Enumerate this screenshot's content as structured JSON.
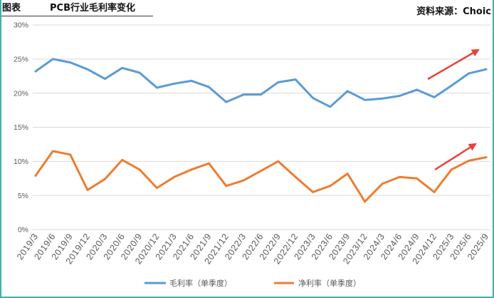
{
  "header": {
    "label": "图表",
    "source": "资料来源：Choic"
  },
  "colors": {
    "frame": "#3FB1AD",
    "grid": "#D9D9D9",
    "annotation_arrow": "#E8423B"
  },
  "chart_data": {
    "type": "line",
    "title": "PCB行业毛利率变化",
    "categories": [
      "2019/3",
      "2019/6",
      "2019/9",
      "2019/12",
      "2020/3",
      "2020/6",
      "2020/9",
      "2020/12",
      "2021/3",
      "2021/6",
      "2021/9",
      "2021/12",
      "2022/3",
      "2022/6",
      "2022/9",
      "2022/12",
      "2023/3",
      "2023/6",
      "2023/9",
      "2023/12",
      "2024/3",
      "2024/6",
      "2024/9",
      "2024/12",
      "2025/3",
      "2025/6",
      "2025/9"
    ],
    "ylim": [
      0,
      30
    ],
    "y_tick_step": 5,
    "y_tick_labels": [
      "0%",
      "5%",
      "10%",
      "15%",
      "20%",
      "25%",
      "30%"
    ],
    "grid": true,
    "legend_placement": "bottom",
    "series": [
      {
        "name": "毛利率（单季度）",
        "color": "#5B9BD5",
        "values": [
          23.2,
          25.0,
          24.5,
          23.5,
          22.1,
          23.7,
          23.0,
          20.8,
          21.4,
          21.8,
          20.9,
          18.7,
          19.8,
          19.8,
          21.6,
          22.0,
          19.3,
          18.0,
          20.3,
          19.0,
          19.2,
          19.6,
          20.5,
          19.4,
          21.1,
          22.9,
          23.5
        ]
      },
      {
        "name": "净利率（单季度）",
        "color": "#ED7D31",
        "values": [
          7.9,
          11.5,
          11.0,
          5.8,
          7.4,
          10.2,
          8.8,
          6.1,
          7.7,
          8.8,
          9.7,
          6.4,
          7.2,
          8.6,
          10.0,
          7.7,
          5.5,
          6.4,
          8.2,
          4.1,
          6.7,
          7.7,
          7.5,
          5.5,
          8.8,
          10.1,
          10.6
        ]
      }
    ]
  }
}
